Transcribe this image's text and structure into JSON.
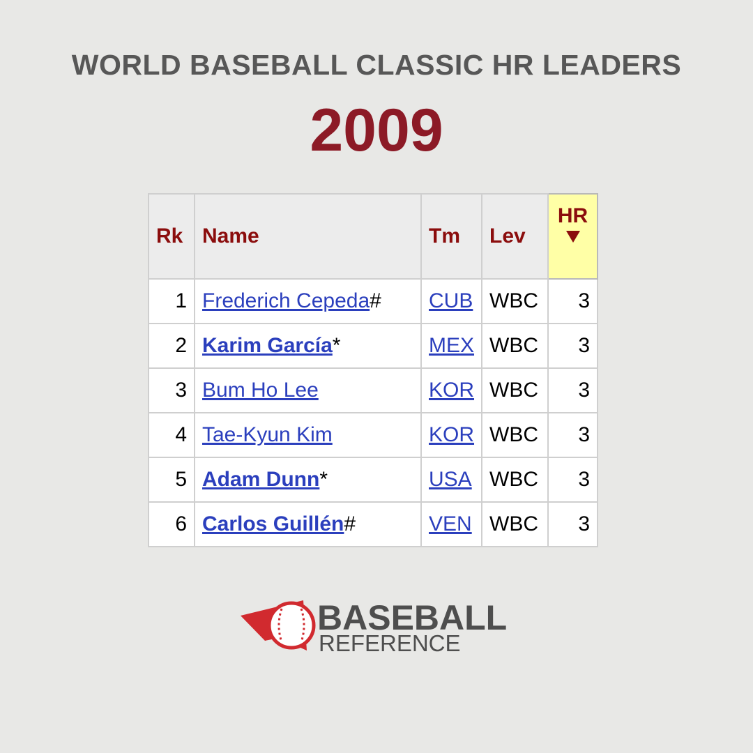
{
  "header": {
    "title": "WORLD BASEBALL CLASSIC HR LEADERS",
    "year": "2009"
  },
  "table": {
    "columns": [
      "Rk",
      "Name",
      "Tm",
      "Lev",
      "HR"
    ],
    "rows": [
      {
        "rank": 1,
        "name": "Frederich Cepeda",
        "mark": "#",
        "bold": false,
        "team": "CUB",
        "level": "WBC",
        "hr": 3
      },
      {
        "rank": 2,
        "name": "Karim García",
        "mark": "*",
        "bold": true,
        "team": "MEX",
        "level": "WBC",
        "hr": 3
      },
      {
        "rank": 3,
        "name": "Bum Ho Lee",
        "mark": "",
        "bold": false,
        "team": "KOR",
        "level": "WBC",
        "hr": 3
      },
      {
        "rank": 4,
        "name": "Tae-Kyun Kim",
        "mark": "",
        "bold": false,
        "team": "KOR",
        "level": "WBC",
        "hr": 3
      },
      {
        "rank": 5,
        "name": "Adam Dunn",
        "mark": "*",
        "bold": true,
        "team": "USA",
        "level": "WBC",
        "hr": 3
      },
      {
        "rank": 6,
        "name": "Carlos Guillén",
        "mark": "#",
        "bold": true,
        "team": "VEN",
        "level": "WBC",
        "hr": 3
      }
    ]
  },
  "logo": {
    "line1": "BASEBALL",
    "line2": "REFERENCE"
  }
}
